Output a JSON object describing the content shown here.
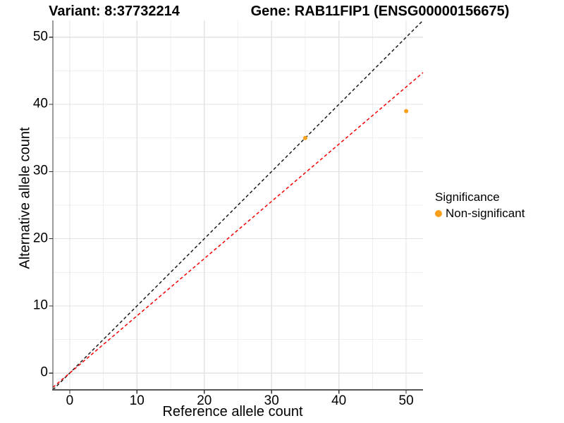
{
  "chart_data": {
    "type": "scatter",
    "title_left": "Variant: 8:37732214",
    "title_right": "Gene: RAB11FIP1 (ENSG00000156675)",
    "xlabel": "Reference allele count",
    "ylabel": "Alternative allele count",
    "xlim": [
      -2.5,
      52.5
    ],
    "ylim": [
      -2.5,
      52.5
    ],
    "x_ticks": [
      0,
      10,
      20,
      30,
      40,
      50
    ],
    "y_ticks": [
      0,
      10,
      20,
      30,
      40,
      50
    ],
    "x_tick_labels": [
      "0",
      "10",
      "20",
      "30",
      "40",
      "50"
    ],
    "y_tick_labels": [
      "0",
      "10",
      "20",
      "30",
      "40",
      "50"
    ],
    "grid": "major+minor",
    "minor_ticks": [
      5,
      15,
      25,
      35,
      45
    ],
    "series": [
      {
        "name": "Non-significant",
        "color": "#F9A01B",
        "points": [
          {
            "x": 35,
            "y": 35
          },
          {
            "x": 50,
            "y": 39
          }
        ]
      }
    ],
    "reference_lines": [
      {
        "name": "identity-line",
        "slope": 1.0,
        "intercept": 0,
        "style": "dashed",
        "color": "#1A1A1A"
      },
      {
        "name": "fit-line",
        "slope": 0.852,
        "intercept": 0,
        "style": "dashed",
        "color": "#F40000"
      }
    ],
    "legend": {
      "title": "Significance",
      "position": "right",
      "items": [
        {
          "label": "Non-significant",
          "color": "#F9A01B"
        }
      ]
    },
    "colors": {
      "background": "#FFFFFF",
      "grid_major": "#E3E3E3",
      "grid_minor": "#EFEFEF",
      "axis_line_left": "#383838",
      "axis_line_bottom": "#585858",
      "tick_mark": "#333333",
      "point": "#F9A01B",
      "identity_line": "#1A1A1A",
      "fit_line": "#F40000"
    }
  }
}
